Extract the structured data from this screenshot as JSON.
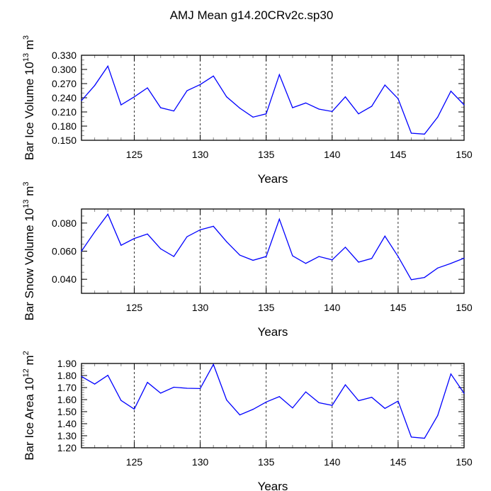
{
  "title": "AMJ Mean g14.20CRv2c.sp30",
  "chart_data": [
    {
      "type": "line",
      "ylabel": "Bar Ice Volume",
      "yunit_base": "10",
      "yunit_exp": "13",
      "yunit": "m",
      "yunit_pow": "3",
      "xlabel": "Years",
      "xlim": [
        121,
        150
      ],
      "ylim": [
        0.15,
        0.33
      ],
      "xticks": [
        "125",
        "130",
        "135",
        "140",
        "145",
        "150"
      ],
      "yticks": [
        "0.150",
        "0.180",
        "0.210",
        "0.240",
        "0.270",
        "0.300",
        "0.330"
      ],
      "yminor_step": 0.01,
      "grid": "vertical dashed at major x ticks",
      "color": "#0000ff",
      "x": [
        121,
        122,
        123,
        124,
        125,
        126,
        127,
        128,
        129,
        130,
        131,
        132,
        133,
        134,
        135,
        136,
        137,
        138,
        139,
        140,
        141,
        142,
        143,
        144,
        145,
        146,
        147,
        148,
        149,
        150
      ],
      "values": [
        0.234,
        0.266,
        0.307,
        0.225,
        0.242,
        0.261,
        0.219,
        0.212,
        0.255,
        0.268,
        0.286,
        0.242,
        0.218,
        0.199,
        0.206,
        0.289,
        0.219,
        0.229,
        0.216,
        0.211,
        0.242,
        0.206,
        0.222,
        0.267,
        0.238,
        0.165,
        0.163,
        0.199,
        0.254,
        0.225
      ]
    },
    {
      "type": "line",
      "ylabel": "Bar Snow Volume",
      "yunit_base": "10",
      "yunit_exp": "13",
      "yunit": "m",
      "yunit_pow": "3",
      "xlabel": "Years",
      "xlim": [
        121,
        150
      ],
      "ylim": [
        0.03,
        0.09
      ],
      "xticks": [
        "125",
        "130",
        "135",
        "140",
        "145",
        "150"
      ],
      "yticks": [
        "0.040",
        "0.060",
        "0.080"
      ],
      "yminor_step": 0.005,
      "grid": "vertical dashed at major x ticks",
      "color": "#0000ff",
      "x": [
        121,
        122,
        123,
        124,
        125,
        126,
        127,
        128,
        129,
        130,
        131,
        132,
        133,
        134,
        135,
        136,
        137,
        138,
        139,
        140,
        141,
        142,
        143,
        144,
        145,
        146,
        147,
        148,
        149,
        150
      ],
      "values": [
        0.06,
        0.0737,
        0.0863,
        0.0642,
        0.069,
        0.0722,
        0.0617,
        0.0562,
        0.0703,
        0.0752,
        0.0777,
        0.0667,
        0.0572,
        0.0535,
        0.0562,
        0.0828,
        0.0567,
        0.0513,
        0.0562,
        0.0538,
        0.0628,
        0.0522,
        0.0548,
        0.0707,
        0.0562,
        0.0397,
        0.0413,
        0.048,
        0.0513,
        0.055
      ]
    },
    {
      "type": "line",
      "ylabel": "Bar Ice Area",
      "yunit_base": "10",
      "yunit_exp": "12",
      "yunit": "m",
      "yunit_pow": "2",
      "xlabel": "Years",
      "xlim": [
        121,
        150
      ],
      "ylim": [
        1.2,
        1.9
      ],
      "xticks": [
        "125",
        "130",
        "135",
        "140",
        "145",
        "150"
      ],
      "yticks": [
        "1.20",
        "1.30",
        "1.40",
        "1.50",
        "1.60",
        "1.70",
        "1.80",
        "1.90"
      ],
      "yminor_step": 0.02,
      "grid": "vertical dashed at major x ticks",
      "color": "#0000ff",
      "x": [
        121,
        122,
        123,
        124,
        125,
        126,
        127,
        128,
        129,
        130,
        131,
        132,
        133,
        134,
        135,
        136,
        137,
        138,
        139,
        140,
        141,
        142,
        143,
        144,
        145,
        146,
        147,
        148,
        149,
        150
      ],
      "values": [
        1.792,
        1.729,
        1.802,
        1.593,
        1.521,
        1.743,
        1.654,
        1.703,
        1.694,
        1.692,
        1.892,
        1.597,
        1.473,
        1.519,
        1.58,
        1.625,
        1.531,
        1.664,
        1.574,
        1.552,
        1.723,
        1.591,
        1.619,
        1.527,
        1.588,
        1.289,
        1.279,
        1.468,
        1.813,
        1.652
      ]
    }
  ]
}
